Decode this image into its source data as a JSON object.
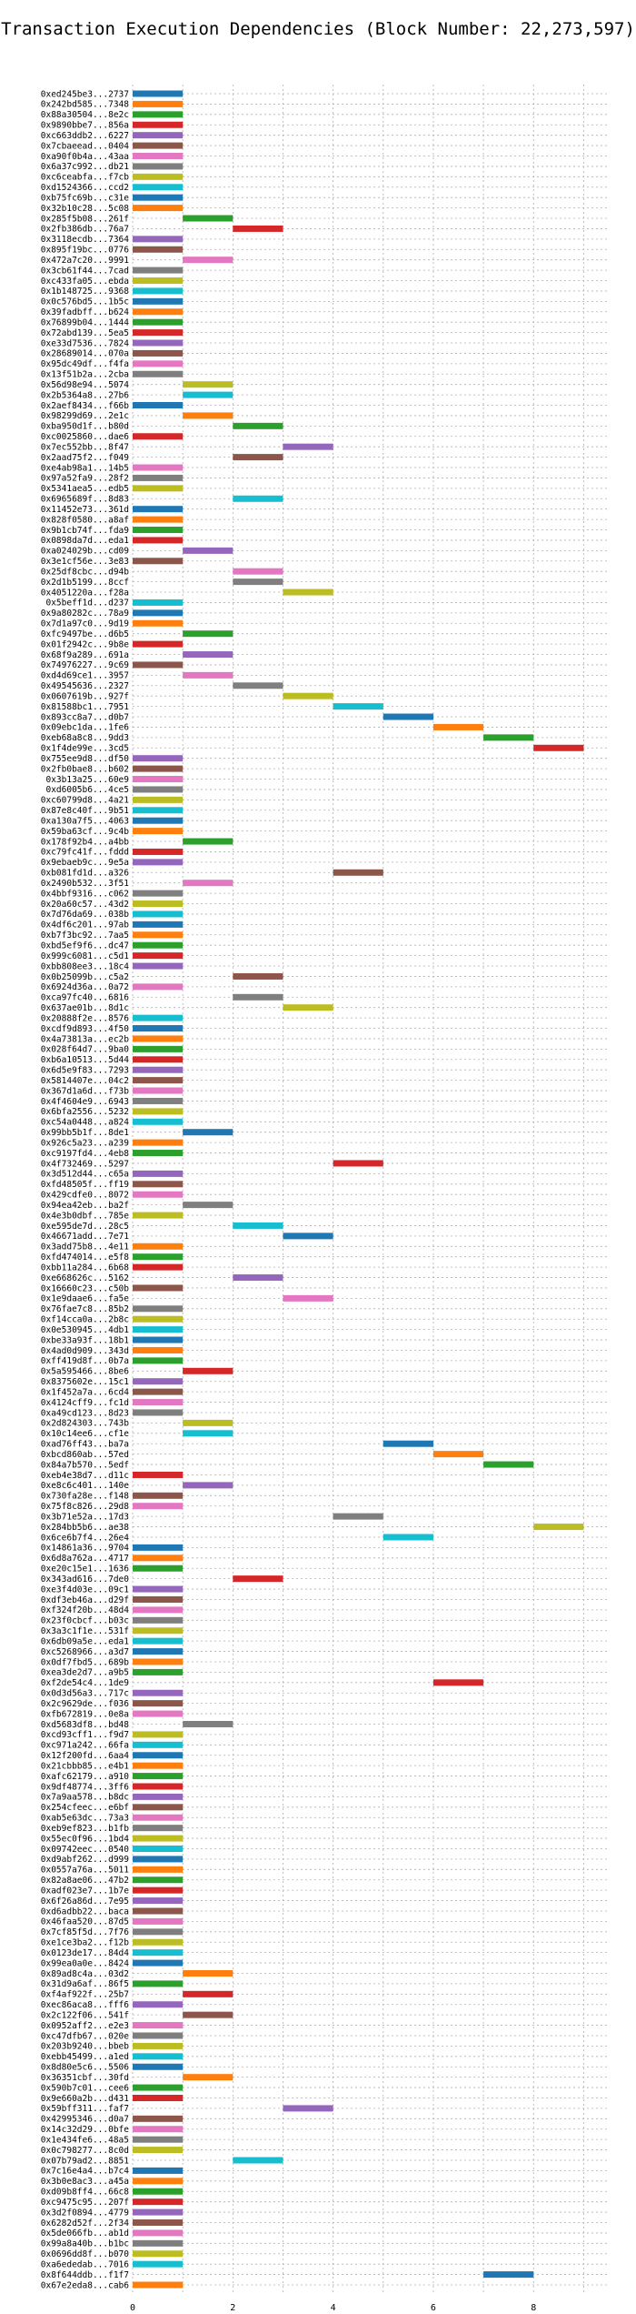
{
  "chart_data": {
    "type": "bar",
    "orientation": "horizontal-gantt",
    "title": "Transaction Execution Dependencies (Block Number: 22,273,597)",
    "xlabel": "",
    "ylabel": "",
    "xlim": [
      0,
      9.5
    ],
    "xticks": [
      0,
      2,
      4,
      6,
      8
    ],
    "grid": true,
    "colors": [
      "#1f77b4",
      "#ff7f0e",
      "#2ca02c",
      "#d62728",
      "#9467bd",
      "#8c564b",
      "#e377c2",
      "#7f7f7f",
      "#bcbd22",
      "#17becf"
    ],
    "transactions": [
      {
        "label": "0xed245be3...2737",
        "start": 0
      },
      {
        "label": "0x242bd585...7348",
        "start": 0
      },
      {
        "label": "0x88a30504...8e2c",
        "start": 0
      },
      {
        "label": "0x9890bbe7...856a",
        "start": 0
      },
      {
        "label": "0xc663ddb2...6227",
        "start": 0
      },
      {
        "label": "0x7cbaeead...0404",
        "start": 0
      },
      {
        "label": "0xa90f0b4a...43aa",
        "start": 0
      },
      {
        "label": "0x6a37c992...db21",
        "start": 0
      },
      {
        "label": "0xc6ceabfa...f7cb",
        "start": 0
      },
      {
        "label": "0xd1524366...ccd2",
        "start": 0
      },
      {
        "label": "0xb75fc69b...c31e",
        "start": 0
      },
      {
        "label": "0x32b10c28...5c08",
        "start": 0
      },
      {
        "label": "0x285f5b08...261f",
        "start": 1
      },
      {
        "label": "0x2fb386db...76a7",
        "start": 2
      },
      {
        "label": "0x3118ecdb...7364",
        "start": 0
      },
      {
        "label": "0x895f19bc...0776",
        "start": 0
      },
      {
        "label": "0x472a7c20...9991",
        "start": 1
      },
      {
        "label": "0x3cb61f44...7cad",
        "start": 0
      },
      {
        "label": "0xc433fa05...ebda",
        "start": 0
      },
      {
        "label": "0x1b148725...9368",
        "start": 0
      },
      {
        "label": "0x0c576bd5...1b5c",
        "start": 0
      },
      {
        "label": "0x39fadbff...b624",
        "start": 0
      },
      {
        "label": "0x76899b04...1444",
        "start": 0
      },
      {
        "label": "0x72abd139...5ea5",
        "start": 0
      },
      {
        "label": "0xe33d7536...7824",
        "start": 0
      },
      {
        "label": "0x28689014...070a",
        "start": 0
      },
      {
        "label": "0x95dc49df...f4fa",
        "start": 0
      },
      {
        "label": "0x13f51b2a...2cba",
        "start": 0
      },
      {
        "label": "0x56d98e94...5074",
        "start": 1
      },
      {
        "label": "0x2b5364a8...27b6",
        "start": 1
      },
      {
        "label": "0x2aef8434...f66b",
        "start": 0
      },
      {
        "label": "0x98299d69...2e1c",
        "start": 1
      },
      {
        "label": "0xba950d1f...b80d",
        "start": 2
      },
      {
        "label": "0xc0025860...dae6",
        "start": 0
      },
      {
        "label": "0x7ec552bb...8f47",
        "start": 3
      },
      {
        "label": "0x2aad75f2...f049",
        "start": 2
      },
      {
        "label": "0xe4ab98a1...14b5",
        "start": 0
      },
      {
        "label": "0x97a52fa9...28f2",
        "start": 0
      },
      {
        "label": "0x5341aea5...edb5",
        "start": 0
      },
      {
        "label": "0x6965689f...8d83",
        "start": 2
      },
      {
        "label": "0x11452e73...361d",
        "start": 0
      },
      {
        "label": "0x828f0580...a8af",
        "start": 0
      },
      {
        "label": "0x9b1cb74f...fda9",
        "start": 0
      },
      {
        "label": "0x0898da7d...eda1",
        "start": 0
      },
      {
        "label": "0xa024029b...cd09",
        "start": 1
      },
      {
        "label": "0x3e1cf56e...3e83",
        "start": 0
      },
      {
        "label": "0x25df8cbc...d94b",
        "start": 2
      },
      {
        "label": "0x2d1b5199...8ccf",
        "start": 2
      },
      {
        "label": "0x4051220a...f28a",
        "start": 3
      },
      {
        "label": "0x5beff1d...d237",
        "start": 0
      },
      {
        "label": "0x9a80282c...78a9",
        "start": 0
      },
      {
        "label": "0x7d1a97c0...9d19",
        "start": 0
      },
      {
        "label": "0xfc9497be...d6b5",
        "start": 1
      },
      {
        "label": "0x01f2942c...9b8e",
        "start": 0
      },
      {
        "label": "0x68f9a289...691a",
        "start": 1
      },
      {
        "label": "0x74976227...9c69",
        "start": 0
      },
      {
        "label": "0xd4d69ce1...3957",
        "start": 1
      },
      {
        "label": "0x49545636...2327",
        "start": 2
      },
      {
        "label": "0x0607619b...927f",
        "start": 3
      },
      {
        "label": "0x81588bc1...7951",
        "start": 4
      },
      {
        "label": "0x893cc8a7...d0b7",
        "start": 5
      },
      {
        "label": "0x09ebc1da...1fe6",
        "start": 6
      },
      {
        "label": "0xeb68a8c8...9dd3",
        "start": 7
      },
      {
        "label": "0x1f4de99e...3cd5",
        "start": 8
      },
      {
        "label": "0x755ee9d8...df50",
        "start": 0
      },
      {
        "label": "0x2fb0bae8...b602",
        "start": 0
      },
      {
        "label": "0x3b13a25...60e9",
        "start": 0
      },
      {
        "label": "0xd6005b6...4ce5",
        "start": 0
      },
      {
        "label": "0xc60799d8...4a21",
        "start": 0
      },
      {
        "label": "0x87e8c40f...9b51",
        "start": 0
      },
      {
        "label": "0xa130a7f5...4063",
        "start": 0
      },
      {
        "label": "0x59ba63cf...9c4b",
        "start": 0
      },
      {
        "label": "0x178f92b4...a4bb",
        "start": 1
      },
      {
        "label": "0xc79fc41f...fddd",
        "start": 0
      },
      {
        "label": "0x9ebaeb9c...9e5a",
        "start": 0
      },
      {
        "label": "0xb081fd1d...a326",
        "start": 4
      },
      {
        "label": "0x2490b532...3f51",
        "start": 1
      },
      {
        "label": "0x4bbf9316...c062",
        "start": 0
      },
      {
        "label": "0x20a60c57...43d2",
        "start": 0
      },
      {
        "label": "0x7d76da69...038b",
        "start": 0
      },
      {
        "label": "0x4df6c201...97ab",
        "start": 0
      },
      {
        "label": "0xb7f3bc92...7aa5",
        "start": 0
      },
      {
        "label": "0xbd5ef9f6...dc47",
        "start": 0
      },
      {
        "label": "0x999c6081...c5d1",
        "start": 0
      },
      {
        "label": "0xbb808ee3...18c4",
        "start": 0
      },
      {
        "label": "0x0b25099b...c5a2",
        "start": 2
      },
      {
        "label": "0x6924d36a...0a72",
        "start": 0
      },
      {
        "label": "0xca97fc40...6816",
        "start": 2
      },
      {
        "label": "0x637ae01b...8d1c",
        "start": 3
      },
      {
        "label": "0x20888f2e...8576",
        "start": 0
      },
      {
        "label": "0xcdf9d893...4f50",
        "start": 0
      },
      {
        "label": "0x4a73813a...ec2b",
        "start": 0
      },
      {
        "label": "0x028f64d7...9ba0",
        "start": 0
      },
      {
        "label": "0xb6a10513...5d44",
        "start": 0
      },
      {
        "label": "0x6d5e9f83...7293",
        "start": 0
      },
      {
        "label": "0x5814407e...04c2",
        "start": 0
      },
      {
        "label": "0x367d1a6d...f73b",
        "start": 0
      },
      {
        "label": "0x4f4604e9...6943",
        "start": 0
      },
      {
        "label": "0x6bfa2556...5232",
        "start": 0
      },
      {
        "label": "0xc54a0448...a824",
        "start": 0
      },
      {
        "label": "0x99bb5b1f...8de1",
        "start": 1
      },
      {
        "label": "0x926c5a23...a239",
        "start": 0
      },
      {
        "label": "0xc9197fd4...4eb8",
        "start": 0
      },
      {
        "label": "0x4f732469...5297",
        "start": 4
      },
      {
        "label": "0x3d512d44...c65a",
        "start": 0
      },
      {
        "label": "0xfd48505f...ff19",
        "start": 0
      },
      {
        "label": "0x429cdfe0...8072",
        "start": 0
      },
      {
        "label": "0x94ea42eb...ba2f",
        "start": 1
      },
      {
        "label": "0x4e3b0dbf...785e",
        "start": 0
      },
      {
        "label": "0xe595de7d...28c5",
        "start": 2
      },
      {
        "label": "0x46671add...7e71",
        "start": 3
      },
      {
        "label": "0x3add75b8...4e11",
        "start": 0
      },
      {
        "label": "0xfd474014...e5f8",
        "start": 0
      },
      {
        "label": "0xbb11a284...6b68",
        "start": 0
      },
      {
        "label": "0xe668626c...5162",
        "start": 2
      },
      {
        "label": "0x16660c23...c50b",
        "start": 0
      },
      {
        "label": "0x1e9daae6...fa5e",
        "start": 3
      },
      {
        "label": "0x76fae7c8...85b2",
        "start": 0
      },
      {
        "label": "0xf14cca0a...2b8c",
        "start": 0
      },
      {
        "label": "0x0e530945...4db1",
        "start": 0
      },
      {
        "label": "0xbe33a93f...18b1",
        "start": 0
      },
      {
        "label": "0x4ad0d909...343d",
        "start": 0
      },
      {
        "label": "0xff419d8f...0b7a",
        "start": 0
      },
      {
        "label": "0x5a595466...8be6",
        "start": 1
      },
      {
        "label": "0x8375602e...15c1",
        "start": 0
      },
      {
        "label": "0x1f452a7a...6cd4",
        "start": 0
      },
      {
        "label": "0x4124cff9...fc1d",
        "start": 0
      },
      {
        "label": "0xa49cd123...8d23",
        "start": 0
      },
      {
        "label": "0x2d824303...743b",
        "start": 1
      },
      {
        "label": "0x10c14ee6...cf1e",
        "start": 1
      },
      {
        "label": "0xad76ff43...ba7a",
        "start": 5
      },
      {
        "label": "0xbcd860ab...57ed",
        "start": 6
      },
      {
        "label": "0x84a7b570...5edf",
        "start": 7
      },
      {
        "label": "0xeb4e38d7...d11c",
        "start": 0
      },
      {
        "label": "0xe8c6c401...140e",
        "start": 1
      },
      {
        "label": "0x730fa28e...f148",
        "start": 0
      },
      {
        "label": "0x75f8c826...29d8",
        "start": 0
      },
      {
        "label": "0x3b71e52a...17d3",
        "start": 4
      },
      {
        "label": "0x284bb5b6...ae38",
        "start": 8
      },
      {
        "label": "0x6ce6b7f4...26e4",
        "start": 5
      },
      {
        "label": "0x14861a36...9704",
        "start": 0
      },
      {
        "label": "0x6d8a762a...4717",
        "start": 0
      },
      {
        "label": "0xe20c15e1...1636",
        "start": 0
      },
      {
        "label": "0x343ad616...7de0",
        "start": 2
      },
      {
        "label": "0xe3f4d03e...09c1",
        "start": 0
      },
      {
        "label": "0xdf3eb46a...d29f",
        "start": 0
      },
      {
        "label": "0xf324f20b...48d4",
        "start": 0
      },
      {
        "label": "0x23f0cbcf...b03c",
        "start": 0
      },
      {
        "label": "0x3a3c1f1e...531f",
        "start": 0
      },
      {
        "label": "0x6db09a5e...eda1",
        "start": 0
      },
      {
        "label": "0xc5268966...a3d7",
        "start": 0
      },
      {
        "label": "0x0df7fbd5...689b",
        "start": 0
      },
      {
        "label": "0xea3de2d7...a9b5",
        "start": 0
      },
      {
        "label": "0xf2de54c4...1de9",
        "start": 6
      },
      {
        "label": "0x0d3d56a3...717c",
        "start": 0
      },
      {
        "label": "0x2c9629de...f036",
        "start": 0
      },
      {
        "label": "0xfb672819...0e8a",
        "start": 0
      },
      {
        "label": "0xd5683df8...bd48",
        "start": 1
      },
      {
        "label": "0xcd93cff1...f9d7",
        "start": 0
      },
      {
        "label": "0xc971a242...66fa",
        "start": 0
      },
      {
        "label": "0x12f200fd...6aa4",
        "start": 0
      },
      {
        "label": "0x21cbbb85...e4b1",
        "start": 0
      },
      {
        "label": "0xafc62179...a910",
        "start": 0
      },
      {
        "label": "0x9df48774...3ff6",
        "start": 0
      },
      {
        "label": "0x7a9aa578...b8dc",
        "start": 0
      },
      {
        "label": "0x254cfeec...e6bf",
        "start": 0
      },
      {
        "label": "0xab5e63dc...73a3",
        "start": 0
      },
      {
        "label": "0xeb9ef823...b1fb",
        "start": 0
      },
      {
        "label": "0x55ec0f96...1bd4",
        "start": 0
      },
      {
        "label": "0x09742eec...0540",
        "start": 0
      },
      {
        "label": "0xd9abf262...d999",
        "start": 0
      },
      {
        "label": "0x0557a76a...5011",
        "start": 0
      },
      {
        "label": "0x82a8ae06...47b2",
        "start": 0
      },
      {
        "label": "0xadf023e7...1b7e",
        "start": 0
      },
      {
        "label": "0x6f26a86d...7e95",
        "start": 0
      },
      {
        "label": "0xd6adbb22...baca",
        "start": 0
      },
      {
        "label": "0x46faa520...87d5",
        "start": 0
      },
      {
        "label": "0x7cf85f5d...7f76",
        "start": 0
      },
      {
        "label": "0xe1ce3ba2...f12b",
        "start": 0
      },
      {
        "label": "0x0123de17...84d4",
        "start": 0
      },
      {
        "label": "0x99ea0a0e...8424",
        "start": 0
      },
      {
        "label": "0x89ad8c4a...03d2",
        "start": 1
      },
      {
        "label": "0x31d9a6af...86f5",
        "start": 0
      },
      {
        "label": "0xf4af922f...25b7",
        "start": 1
      },
      {
        "label": "0xec86aca8...fff6",
        "start": 0
      },
      {
        "label": "0x2c122f06...541f",
        "start": 1
      },
      {
        "label": "0x0952aff2...e2e3",
        "start": 0
      },
      {
        "label": "0xc47dfb67...020e",
        "start": 0
      },
      {
        "label": "0x203b9240...bbeb",
        "start": 0
      },
      {
        "label": "0xebb45499...a1ed",
        "start": 0
      },
      {
        "label": "0x8d80e5c6...5506",
        "start": 0
      },
      {
        "label": "0x36351cbf...30fd",
        "start": 1
      },
      {
        "label": "0x590b7c01...cee6",
        "start": 0
      },
      {
        "label": "0x9e660a2b...d431",
        "start": 0
      },
      {
        "label": "0x59bff311...faf7",
        "start": 3
      },
      {
        "label": "0x42995346...d0a7",
        "start": 0
      },
      {
        "label": "0x14c32d29...0bfe",
        "start": 0
      },
      {
        "label": "0x1e434fe6...48a5",
        "start": 0
      },
      {
        "label": "0x0c798277...8c0d",
        "start": 0
      },
      {
        "label": "0x07b79ad2...8851",
        "start": 2
      },
      {
        "label": "0x7c16e4a4...b7c4",
        "start": 0
      },
      {
        "label": "0x3b0e8ac3...a45a",
        "start": 0
      },
      {
        "label": "0xd09b8ff4...66c8",
        "start": 0
      },
      {
        "label": "0xc9475c95...207f",
        "start": 0
      },
      {
        "label": "0x3d2f0894...4779",
        "start": 0
      },
      {
        "label": "0x6282d52f...2f34",
        "start": 0
      },
      {
        "label": "0x5de066fb...ab1d",
        "start": 0
      },
      {
        "label": "0x99a8a40b...b1bc",
        "start": 0
      },
      {
        "label": "0x0696dd8f...b070",
        "start": 0
      },
      {
        "label": "0xa6ededab...7016",
        "start": 0
      },
      {
        "label": "0x8f644ddb...f1f7",
        "start": 7
      },
      {
        "label": "0x67e2eda8...cab6",
        "start": 0
      }
    ]
  }
}
